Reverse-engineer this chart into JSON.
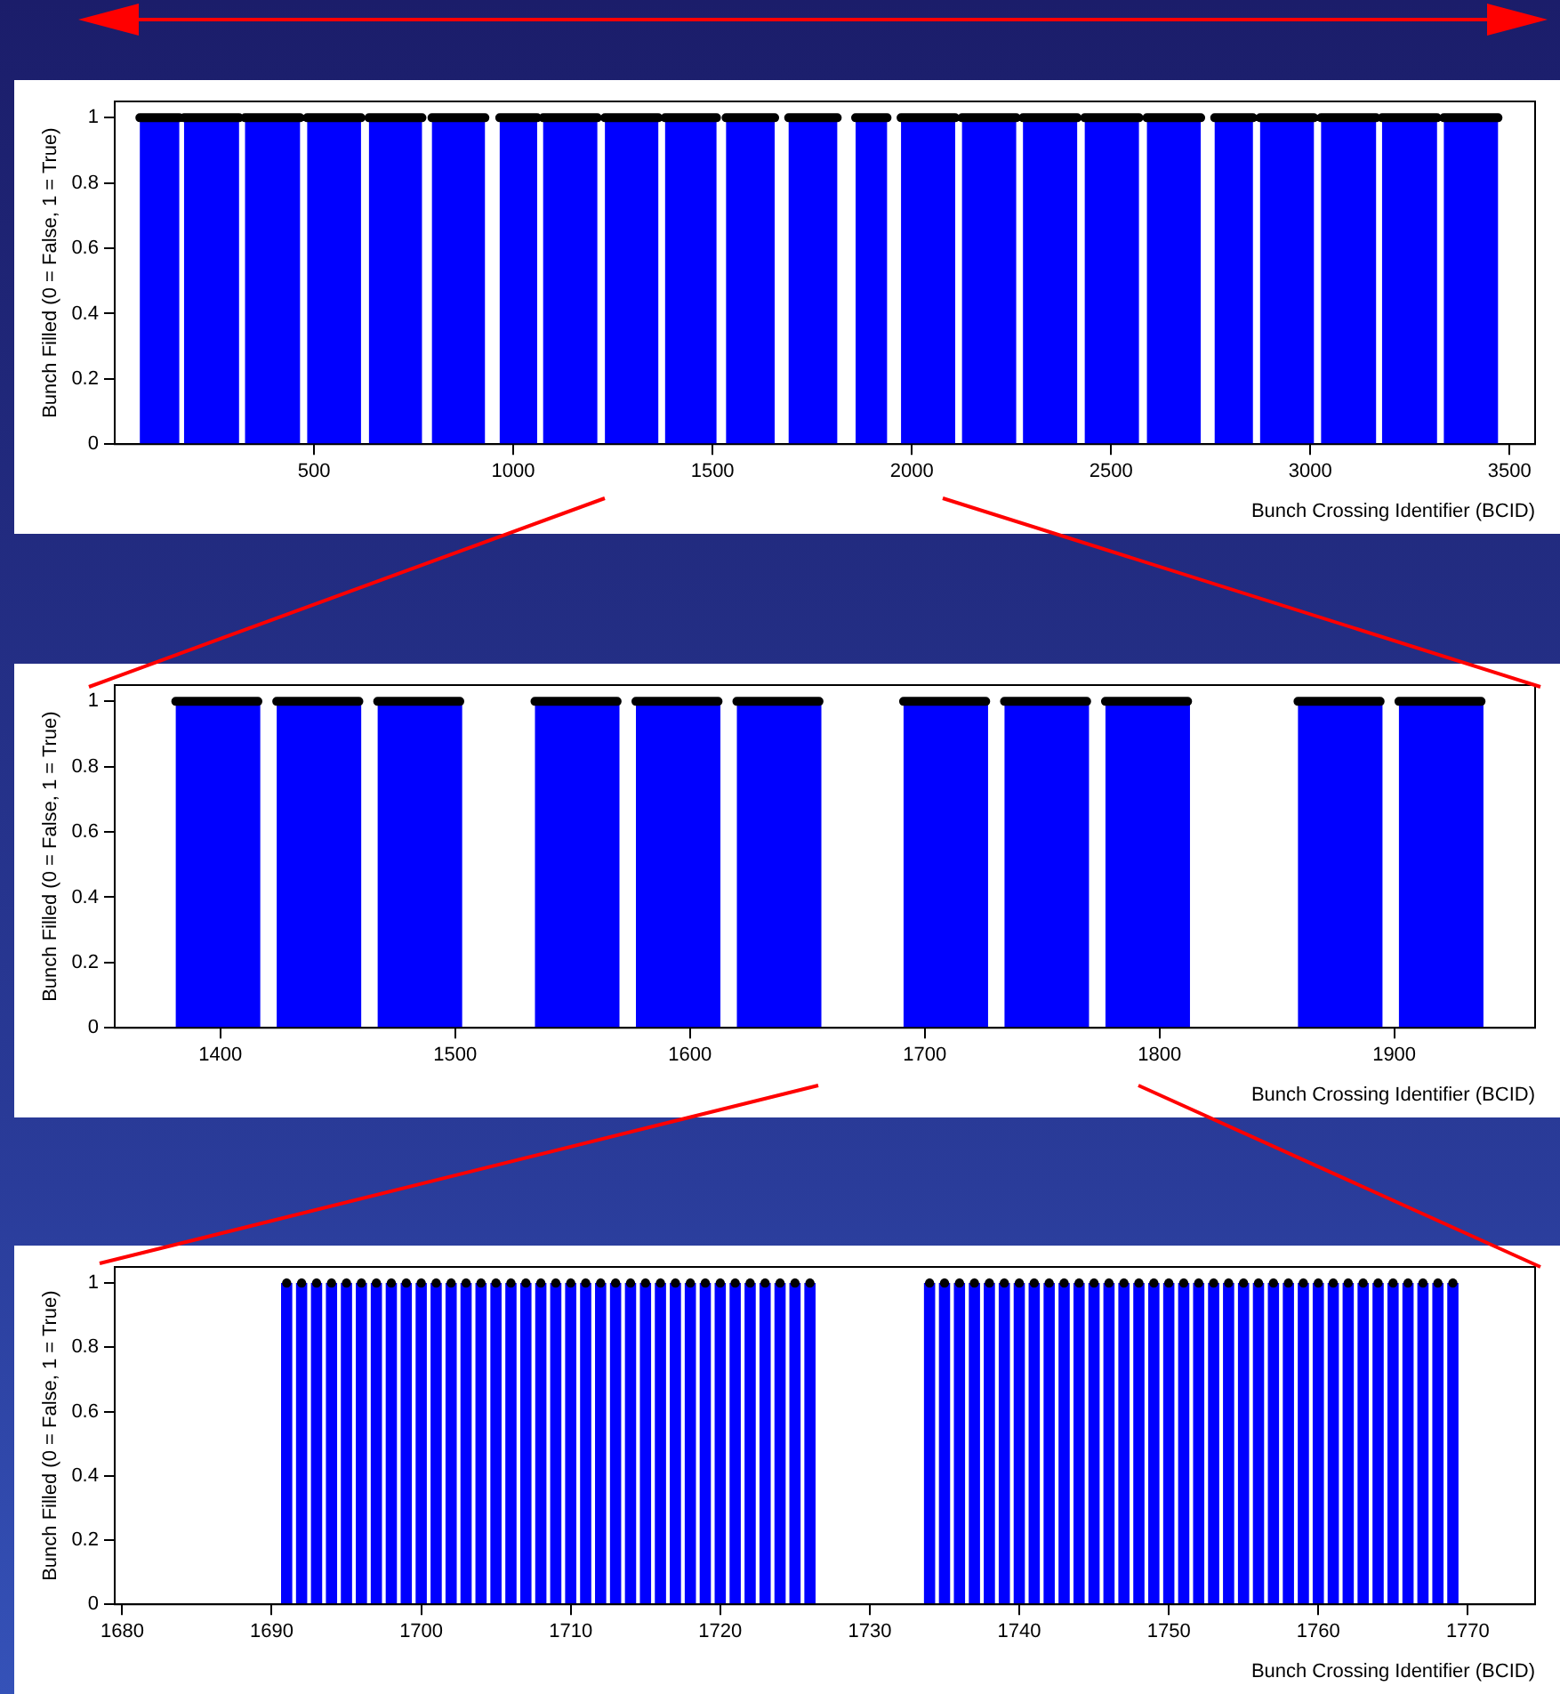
{
  "chart_data": [
    {
      "type": "histogram",
      "xlabel": "Bunch Crossing Identifier (BCID)",
      "ylabel": "Bunch Filled (0 = False, 1 = True)",
      "bins": [
        0,
        63,
        162,
        174,
        312,
        327,
        465,
        483,
        618,
        638,
        771,
        796,
        929,
        966,
        1060,
        1075,
        1211,
        1230,
        1364,
        1381,
        1510,
        1534,
        1656,
        1691,
        1813,
        1859,
        1938,
        1973,
        2109,
        2126,
        2262,
        2279,
        2415,
        2434,
        2570,
        2590,
        2725,
        2760,
        2856,
        2874,
        3009,
        3027,
        3165,
        3180,
        3318,
        3335,
        3471,
        3564
      ],
      "series": [
        {
          "color": "#0000ff",
          "values": [
            0,
            1,
            0,
            1,
            0,
            1,
            0,
            1,
            0,
            1,
            0,
            1,
            0,
            1,
            0,
            1,
            0,
            1,
            0,
            1,
            0,
            1,
            0,
            1,
            0,
            1,
            0,
            1,
            0,
            1,
            0,
            1,
            0,
            1,
            0,
            1,
            0,
            1,
            0,
            1,
            0,
            1,
            0,
            1,
            0,
            1,
            0
          ]
        },
        {
          "type": "line",
          "color": "#000000",
          "x": [
            63,
            162,
            168,
            174,
            312,
            320,
            327,
            465,
            474,
            483,
            618,
            628,
            638,
            771,
            784,
            796,
            929,
            948,
            966,
            1060,
            1068,
            1075,
            1211,
            1220,
            1230,
            1364,
            1372,
            1381,
            1510,
            1522,
            1534,
            1656,
            1674,
            1691,
            1813,
            1836,
            1859,
            1938,
            1956,
            1973,
            2109,
            2118,
            2126,
            2262,
            2270,
            2279,
            2415,
            2424,
            2434,
            2570,
            2580,
            2590,
            2725,
            2742,
            2760,
            2856,
            2865,
            2874,
            3009,
            3018,
            3027,
            3165,
            3172,
            3180,
            3318,
            3326,
            3335,
            3471
          ],
          "values": [
            1,
            1,
            null,
            1,
            1,
            null,
            1,
            1,
            null,
            1,
            1,
            null,
            1,
            1,
            null,
            1,
            1,
            null,
            1,
            1,
            null,
            1,
            1,
            null,
            1,
            1,
            null,
            1,
            1,
            null,
            1,
            1,
            null,
            1,
            1,
            null,
            1,
            1,
            null,
            1,
            1,
            null,
            1,
            1,
            null,
            1,
            1,
            null,
            1,
            1,
            null,
            1,
            1,
            null,
            1,
            1,
            null,
            1,
            1,
            null,
            1,
            1,
            null,
            1,
            1,
            null,
            1,
            1
          ]
        }
      ],
      "xlim": [
        0,
        3564
      ],
      "xticks": [
        500,
        1000,
        1500,
        2000,
        2500,
        3000,
        3500
      ],
      "ylim": [
        0,
        1.05
      ],
      "yticks": [
        0,
        0.2,
        0.4,
        0.6,
        0.8,
        1
      ]
    },
    {
      "type": "histogram",
      "xlabel": "Bunch Crossing Identifier (BCID)",
      "ylabel": "Bunch Filled (0 = False, 1 = True)",
      "bins": [
        1355,
        1381,
        1417,
        1424,
        1460,
        1467,
        1503,
        1534,
        1570,
        1577,
        1613,
        1620,
        1656,
        1691,
        1727,
        1734,
        1770,
        1777,
        1813,
        1859,
        1895,
        1902,
        1938,
        1960
      ],
      "series": [
        {
          "color": "#0000ff",
          "values": [
            0,
            1,
            0,
            1,
            0,
            1,
            0,
            1,
            0,
            1,
            0,
            1,
            0,
            1,
            0,
            1,
            0,
            1,
            0,
            1,
            0,
            1,
            0
          ]
        },
        {
          "type": "line",
          "color": "#000000",
          "x": [
            1381,
            1416,
            1420,
            1424,
            1459,
            1463,
            1467,
            1502,
            1518,
            1534,
            1569,
            1573,
            1577,
            1612,
            1616,
            1620,
            1655,
            1673,
            1691,
            1726,
            1730,
            1734,
            1769,
            1773,
            1777,
            1812,
            1835,
            1859,
            1894,
            1898,
            1902,
            1937
          ],
          "values": [
            1,
            1,
            null,
            1,
            1,
            null,
            1,
            1,
            null,
            1,
            1,
            null,
            1,
            1,
            null,
            1,
            1,
            null,
            1,
            1,
            null,
            1,
            1,
            null,
            1,
            1,
            null,
            1,
            1,
            null,
            1,
            1
          ]
        }
      ],
      "xlim": [
        1355,
        1960
      ],
      "xticks": [
        1400,
        1500,
        1600,
        1700,
        1800,
        1900
      ],
      "ylim": [
        0,
        1.05
      ],
      "yticks": [
        0,
        0.2,
        0.4,
        0.6,
        0.8,
        1
      ]
    },
    {
      "type": "bar",
      "xlabel": "Bunch Crossing Identifier (BCID)",
      "ylabel": "Bunch Filled (0 = False, 1 = True)",
      "marker": "circle",
      "x": [
        1691,
        1692,
        1693,
        1694,
        1695,
        1696,
        1697,
        1698,
        1699,
        1700,
        1701,
        1702,
        1703,
        1704,
        1705,
        1706,
        1707,
        1708,
        1709,
        1710,
        1711,
        1712,
        1713,
        1714,
        1715,
        1716,
        1717,
        1718,
        1719,
        1720,
        1721,
        1722,
        1723,
        1724,
        1725,
        1726,
        1734,
        1735,
        1736,
        1737,
        1738,
        1739,
        1740,
        1741,
        1742,
        1743,
        1744,
        1745,
        1746,
        1747,
        1748,
        1749,
        1750,
        1751,
        1752,
        1753,
        1754,
        1755,
        1756,
        1757,
        1758,
        1759,
        1760,
        1761,
        1762,
        1763,
        1764,
        1765,
        1766,
        1767,
        1768,
        1769
      ],
      "series": [
        {
          "color": "#0000ff",
          "values": [
            1,
            1,
            1,
            1,
            1,
            1,
            1,
            1,
            1,
            1,
            1,
            1,
            1,
            1,
            1,
            1,
            1,
            1,
            1,
            1,
            1,
            1,
            1,
            1,
            1,
            1,
            1,
            1,
            1,
            1,
            1,
            1,
            1,
            1,
            1,
            1,
            1,
            1,
            1,
            1,
            1,
            1,
            1,
            1,
            1,
            1,
            1,
            1,
            1,
            1,
            1,
            1,
            1,
            1,
            1,
            1,
            1,
            1,
            1,
            1,
            1,
            1,
            1,
            1,
            1,
            1,
            1,
            1,
            1,
            1,
            1,
            1
          ]
        },
        {
          "type": "scatter",
          "color": "#000000",
          "values": [
            1,
            1,
            1,
            1,
            1,
            1,
            1,
            1,
            1,
            1,
            1,
            1,
            1,
            1,
            1,
            1,
            1,
            1,
            1,
            1,
            1,
            1,
            1,
            1,
            1,
            1,
            1,
            1,
            1,
            1,
            1,
            1,
            1,
            1,
            1,
            1,
            1,
            1,
            1,
            1,
            1,
            1,
            1,
            1,
            1,
            1,
            1,
            1,
            1,
            1,
            1,
            1,
            1,
            1,
            1,
            1,
            1,
            1,
            1,
            1,
            1,
            1,
            1,
            1,
            1,
            1,
            1,
            1,
            1,
            1,
            1,
            1
          ]
        }
      ],
      "xlim": [
        1679.5,
        1774.5
      ],
      "xticks": [
        1680,
        1690,
        1700,
        1710,
        1720,
        1730,
        1740,
        1750,
        1760,
        1770
      ],
      "ylim": [
        0,
        1.05
      ],
      "yticks": [
        0,
        0.2,
        0.4,
        0.6,
        0.8,
        1
      ]
    }
  ]
}
